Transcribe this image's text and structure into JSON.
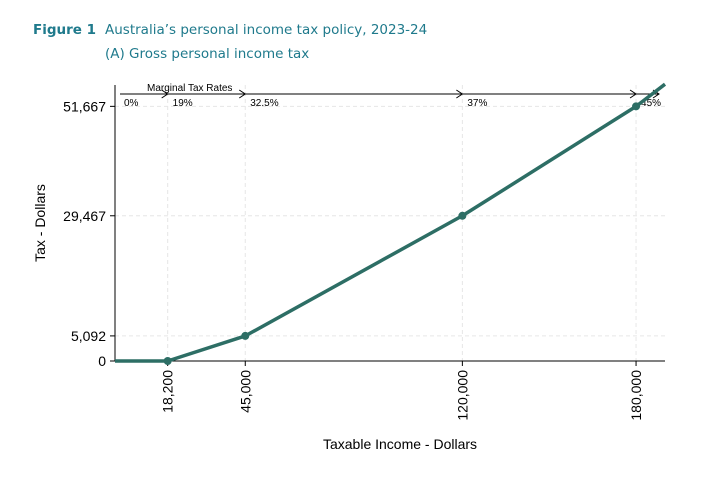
{
  "figure": {
    "label": "Figure 1",
    "title": "Australia’s personal income tax policy, 2023-24",
    "subtitle": "(A) Gross personal income tax"
  },
  "colors": {
    "heading": "#1f7a8c",
    "line": "#2d6e65",
    "axis": "#000000",
    "grid": "#e6e6e6"
  },
  "chart_data": {
    "type": "line",
    "xlabel": "Taxable Income - Dollars",
    "ylabel": "Tax - Dollars",
    "xlim": [
      0,
      190000
    ],
    "ylim": [
      0,
      56000
    ],
    "grid": true,
    "x_ticks": [
      {
        "value": 18200,
        "label": "18,200"
      },
      {
        "value": 45000,
        "label": "45,000"
      },
      {
        "value": 120000,
        "label": "120,000"
      },
      {
        "value": 180000,
        "label": "180,000"
      }
    ],
    "y_ticks": [
      {
        "value": 0,
        "label": "0"
      },
      {
        "value": 5092,
        "label": "5,092"
      },
      {
        "value": 29467,
        "label": "29,467"
      },
      {
        "value": 51667,
        "label": "51,667"
      }
    ],
    "series": [
      {
        "values": [
          {
            "x": 0,
            "y": 0
          },
          {
            "x": 18200,
            "y": 0
          },
          {
            "x": 45000,
            "y": 5092
          },
          {
            "x": 120000,
            "y": 29467
          },
          {
            "x": 180000,
            "y": 51667
          },
          {
            "x": 190000,
            "y": 56167
          }
        ],
        "markers": [
          18200,
          45000,
          120000,
          180000
        ]
      }
    ],
    "marginal_rates": {
      "label": "Marginal Tax Rates",
      "brackets": [
        {
          "from": 0,
          "rate": "0%"
        },
        {
          "from": 18200,
          "rate": "19%"
        },
        {
          "from": 45000,
          "rate": "32.5%"
        },
        {
          "from": 120000,
          "rate": "37%"
        },
        {
          "from": 180000,
          "rate": "45%"
        }
      ]
    }
  }
}
